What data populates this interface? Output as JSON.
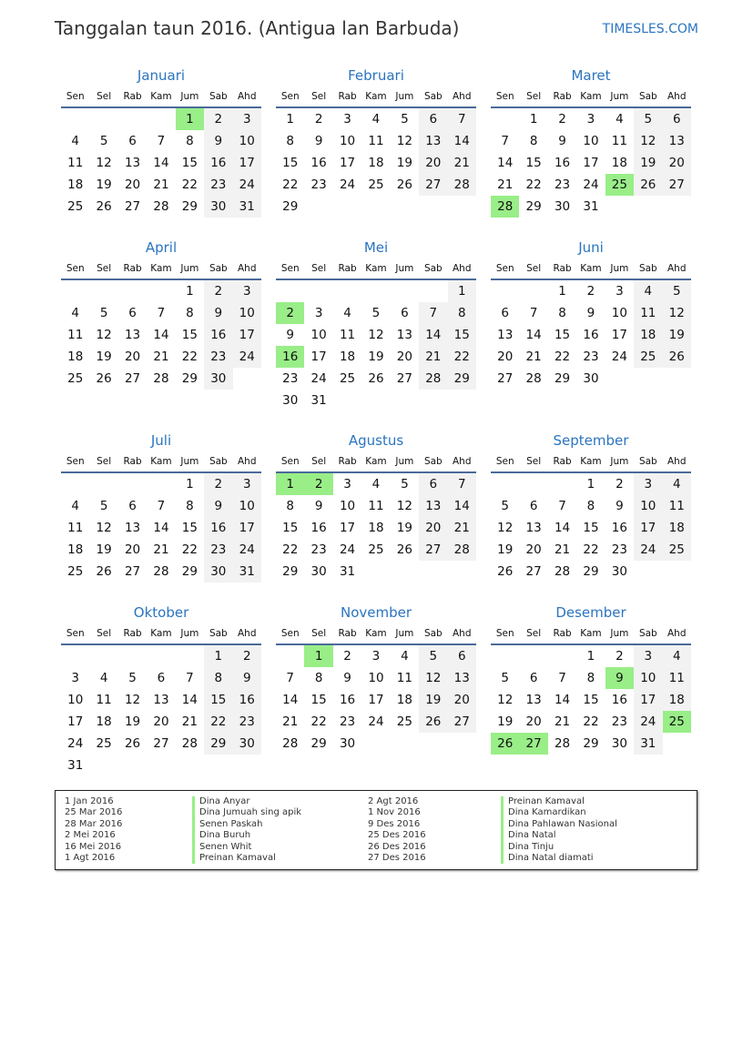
{
  "header": {
    "title": "Tanggalan taun 2016. (Antigua lan Barbuda)",
    "site": "TIMESLES.COM"
  },
  "colors": {
    "accent": "#2a74c0",
    "holiday": "#99ee88",
    "weekend": "#f2f2f2"
  },
  "weekdays": [
    "Sen",
    "Sel",
    "Rab",
    "Kam",
    "Jum",
    "Sab",
    "Ahd"
  ],
  "months": [
    {
      "name": "Januari",
      "first_weekday_offset": 4,
      "days": 31,
      "holidays": [
        1
      ]
    },
    {
      "name": "Februari",
      "first_weekday_offset": 0,
      "days": 29,
      "holidays": []
    },
    {
      "name": "Maret",
      "first_weekday_offset": 1,
      "days": 31,
      "holidays": [
        25,
        28
      ]
    },
    {
      "name": "April",
      "first_weekday_offset": 4,
      "days": 30,
      "holidays": []
    },
    {
      "name": "Mei",
      "first_weekday_offset": 6,
      "days": 31,
      "holidays": [
        2,
        16
      ]
    },
    {
      "name": "Juni",
      "first_weekday_offset": 2,
      "days": 30,
      "holidays": []
    },
    {
      "name": "Juli",
      "first_weekday_offset": 4,
      "days": 31,
      "holidays": []
    },
    {
      "name": "Agustus",
      "first_weekday_offset": 0,
      "days": 31,
      "holidays": [
        1,
        2
      ]
    },
    {
      "name": "September",
      "first_weekday_offset": 3,
      "days": 30,
      "holidays": []
    },
    {
      "name": "Oktober",
      "first_weekday_offset": 5,
      "days": 31,
      "holidays": []
    },
    {
      "name": "November",
      "first_weekday_offset": 1,
      "days": 30,
      "holidays": [
        1
      ]
    },
    {
      "name": "Desember",
      "first_weekday_offset": 3,
      "days": 31,
      "holidays": [
        9,
        25,
        26,
        27
      ]
    }
  ],
  "legend": [
    [
      {
        "date": "1 Jan 2016",
        "name": "Dina Anyar"
      },
      {
        "date": "25 Mar 2016",
        "name": "Dina Jumuah sing apik"
      },
      {
        "date": "28 Mar 2016",
        "name": "Senen Paskah"
      },
      {
        "date": "2 Mei 2016",
        "name": "Dina Buruh"
      },
      {
        "date": "16 Mei 2016",
        "name": "Senen Whit"
      },
      {
        "date": "1 Agt 2016",
        "name": "Preinan Kamaval"
      }
    ],
    [
      {
        "date": "2 Agt 2016",
        "name": "Preinan Kamaval"
      },
      {
        "date": "1 Nov 2016",
        "name": "Dina Kamardikan"
      },
      {
        "date": "9 Des 2016",
        "name": "Dina Pahlawan Nasional"
      },
      {
        "date": "25 Des 2016",
        "name": "Dina Natal"
      },
      {
        "date": "26 Des 2016",
        "name": "Dina Tinju"
      },
      {
        "date": "27 Des 2016",
        "name": "Dina Natal diamati"
      }
    ]
  ]
}
